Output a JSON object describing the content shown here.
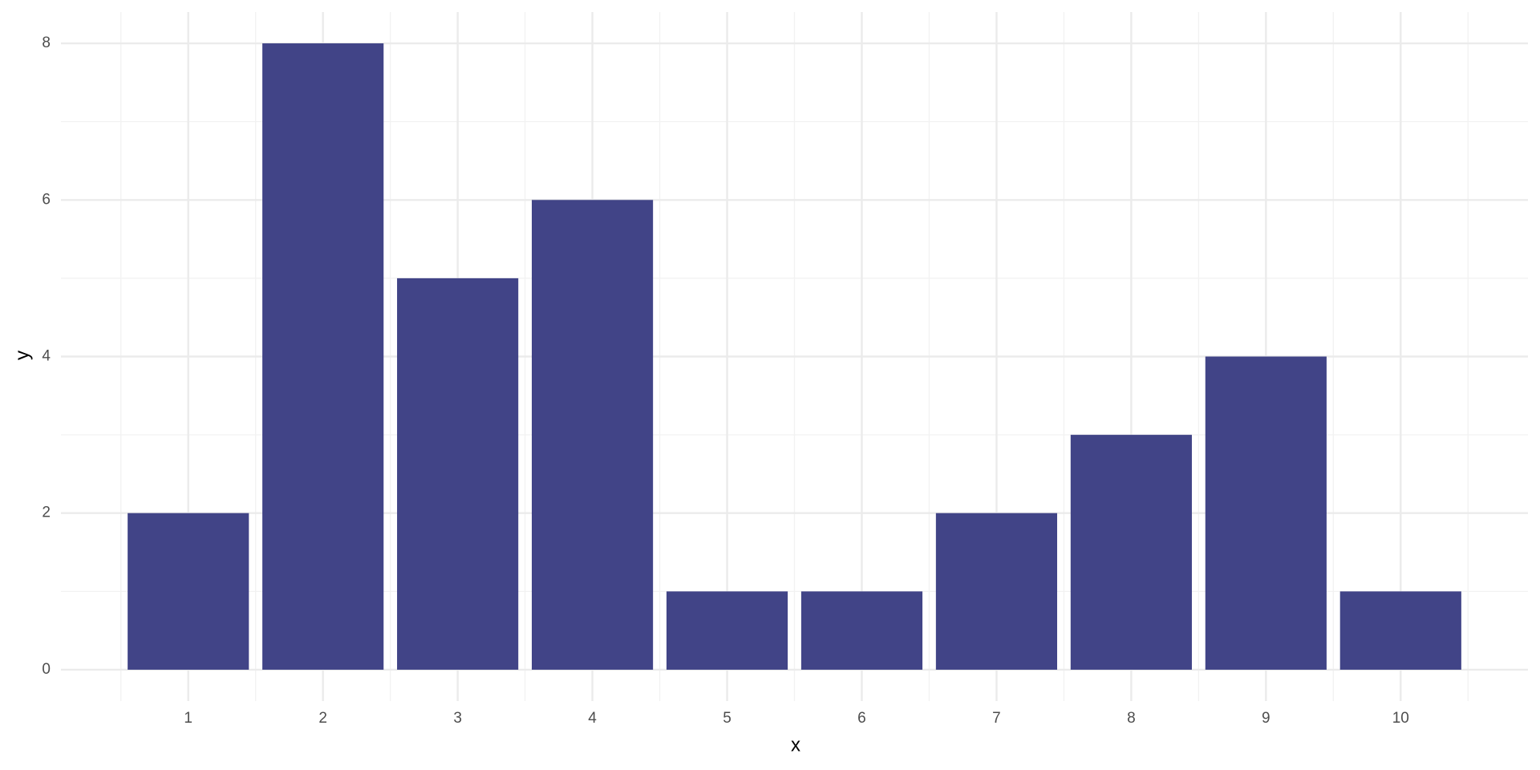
{
  "chart_data": {
    "type": "bar",
    "x": [
      1,
      2,
      3,
      4,
      5,
      6,
      7,
      8,
      9,
      10
    ],
    "values": [
      2,
      8,
      5,
      6,
      1,
      1,
      2,
      3,
      4,
      1
    ],
    "color": "#414487",
    "x_label": "x",
    "y_label": "y",
    "xlim": [
      0.055,
      10.945
    ],
    "xticks": [
      1,
      2,
      3,
      4,
      5,
      6,
      7,
      8,
      9,
      10
    ],
    "ylim": [
      -0.4,
      8.4
    ],
    "yticks": [
      0,
      2,
      4,
      6,
      8
    ],
    "grid": true
  }
}
